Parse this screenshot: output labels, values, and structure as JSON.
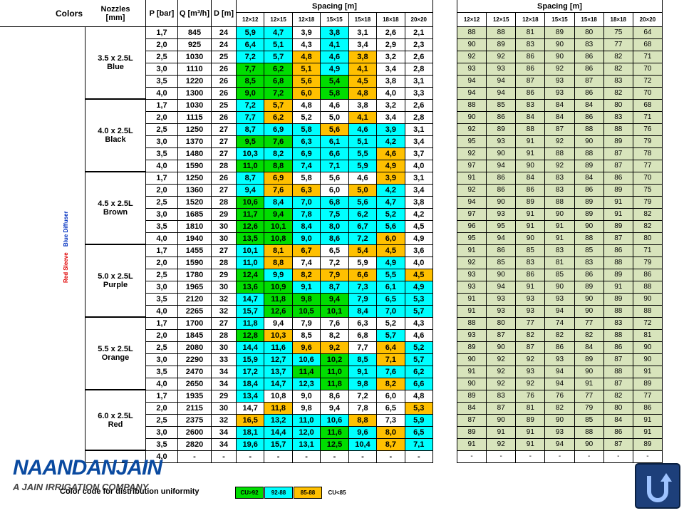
{
  "header": {
    "colors": "Colors",
    "nozzles": "Nozzles [mm]",
    "p": "P [bar]",
    "q": "Q [m³/h]",
    "d": "D [m]",
    "spacing_left": "Spacing [m]",
    "spacing_right": "Spacing [m]",
    "spacings": [
      "12×12",
      "12×15",
      "12×18",
      "15×15",
      "15×18",
      "18×18",
      "20×20"
    ]
  },
  "side_labels": {
    "sleeve": "Red Sleeve",
    "diffuser": "Blue Diffuser"
  },
  "groups": [
    {
      "nozzle": "3.5 x 2.5L",
      "color": "Blue",
      "rows": [
        {
          "p": "1,7",
          "q": "845",
          "d": "24",
          "spacing": [
            "5,9",
            "4,7",
            "3,9",
            "3,8",
            "3,1",
            "2,6",
            "2,1"
          ],
          "cu": [
            88,
            88,
            81,
            89,
            80,
            75,
            64
          ]
        },
        {
          "p": "2,0",
          "q": "925",
          "d": "24",
          "spacing": [
            "6,4",
            "5,1",
            "4,3",
            "4,1",
            "3,4",
            "2,9",
            "2,3"
          ],
          "cu": [
            90,
            89,
            83,
            90,
            83,
            77,
            68
          ]
        },
        {
          "p": "2,5",
          "q": "1030",
          "d": "25",
          "spacing": [
            "7,2",
            "5,7",
            "4,8",
            "4,6",
            "3,8",
            "3,2",
            "2,6"
          ],
          "cu": [
            92,
            92,
            86,
            90,
            86,
            82,
            71
          ]
        },
        {
          "p": "3,0",
          "q": "1110",
          "d": "26",
          "spacing": [
            "7,7",
            "6,2",
            "5,1",
            "4,9",
            "4,1",
            "3,4",
            "2,8"
          ],
          "cu": [
            93,
            93,
            86,
            92,
            86,
            82,
            70
          ]
        },
        {
          "p": "3,5",
          "q": "1220",
          "d": "26",
          "spacing": [
            "8,5",
            "6,8",
            "5,6",
            "5,4",
            "4,5",
            "3,8",
            "3,1"
          ],
          "cu": [
            94,
            94,
            87,
            93,
            87,
            83,
            72
          ]
        },
        {
          "p": "4,0",
          "q": "1300",
          "d": "26",
          "spacing": [
            "9,0",
            "7,2",
            "6,0",
            "5,8",
            "4,8",
            "4,0",
            "3,3"
          ],
          "cu": [
            94,
            94,
            86,
            93,
            86,
            82,
            70
          ]
        }
      ]
    },
    {
      "nozzle": "4.0 x 2.5L",
      "color": "Black",
      "rows": [
        {
          "p": "1,7",
          "q": "1030",
          "d": "25",
          "spacing": [
            "7,2",
            "5,7",
            "4,8",
            "4,6",
            "3,8",
            "3,2",
            "2,6"
          ],
          "cu": [
            88,
            85,
            83,
            84,
            84,
            80,
            68
          ]
        },
        {
          "p": "2,0",
          "q": "1115",
          "d": "26",
          "spacing": [
            "7,7",
            "6,2",
            "5,2",
            "5,0",
            "4,1",
            "3,4",
            "2,8"
          ],
          "cu": [
            90,
            86,
            84,
            84,
            86,
            83,
            71
          ]
        },
        {
          "p": "2,5",
          "q": "1250",
          "d": "27",
          "spacing": [
            "8,7",
            "6,9",
            "5,8",
            "5,6",
            "4,6",
            "3,9",
            "3,1"
          ],
          "cu": [
            92,
            89,
            88,
            87,
            88,
            88,
            76
          ]
        },
        {
          "p": "3,0",
          "q": "1370",
          "d": "27",
          "spacing": [
            "9,5",
            "7,6",
            "6,3",
            "6,1",
            "5,1",
            "4,2",
            "3,4"
          ],
          "cu": [
            95,
            93,
            91,
            92,
            90,
            89,
            79
          ]
        },
        {
          "p": "3,5",
          "q": "1480",
          "d": "27",
          "spacing": [
            "10,3",
            "8,2",
            "6,9",
            "6,6",
            "5,5",
            "4,6",
            "3,7"
          ],
          "cu": [
            92,
            90,
            91,
            88,
            88,
            87,
            78
          ]
        },
        {
          "p": "4,0",
          "q": "1590",
          "d": "28",
          "spacing": [
            "11,0",
            "8,8",
            "7,4",
            "7,1",
            "5,9",
            "4,9",
            "4,0"
          ],
          "cu": [
            97,
            94,
            90,
            92,
            89,
            87,
            77
          ]
        }
      ]
    },
    {
      "nozzle": "4.5 x 2.5L",
      "color": "Brown",
      "rows": [
        {
          "p": "1,7",
          "q": "1250",
          "d": "26",
          "spacing": [
            "8,7",
            "6,9",
            "5,8",
            "5,6",
            "4,6",
            "3,9",
            "3,1"
          ],
          "cu": [
            91,
            86,
            84,
            83,
            84,
            86,
            70
          ]
        },
        {
          "p": "2,0",
          "q": "1360",
          "d": "27",
          "spacing": [
            "9,4",
            "7,6",
            "6,3",
            "6,0",
            "5,0",
            "4,2",
            "3,4"
          ],
          "cu": [
            92,
            86,
            86,
            83,
            86,
            89,
            75
          ]
        },
        {
          "p": "2,5",
          "q": "1520",
          "d": "28",
          "spacing": [
            "10,6",
            "8,4",
            "7,0",
            "6,8",
            "5,6",
            "4,7",
            "3,8"
          ],
          "cu": [
            94,
            90,
            89,
            88,
            89,
            91,
            79
          ]
        },
        {
          "p": "3,0",
          "q": "1685",
          "d": "29",
          "spacing": [
            "11,7",
            "9,4",
            "7,8",
            "7,5",
            "6,2",
            "5,2",
            "4,2"
          ],
          "cu": [
            97,
            93,
            91,
            90,
            89,
            91,
            82
          ]
        },
        {
          "p": "3,5",
          "q": "1810",
          "d": "30",
          "spacing": [
            "12,6",
            "10,1",
            "8,4",
            "8,0",
            "6,7",
            "5,6",
            "4,5"
          ],
          "cu": [
            96,
            95,
            91,
            91,
            90,
            89,
            82
          ]
        },
        {
          "p": "4,0",
          "q": "1940",
          "d": "30",
          "spacing": [
            "13,5",
            "10,8",
            "9,0",
            "8,6",
            "7,2",
            "6,0",
            "4,9"
          ],
          "cu": [
            95,
            94,
            90,
            91,
            88,
            87,
            80
          ]
        }
      ]
    },
    {
      "nozzle": "5.0 x 2.5L",
      "color": "Purple",
      "rows": [
        {
          "p": "1,7",
          "q": "1455",
          "d": "27",
          "spacing": [
            "10,1",
            "8,1",
            "6,7",
            "6,5",
            "5,4",
            "4,5",
            "3,6"
          ],
          "cu": [
            91,
            86,
            85,
            83,
            85,
            86,
            71
          ]
        },
        {
          "p": "2,0",
          "q": "1590",
          "d": "28",
          "spacing": [
            "11,0",
            "8,8",
            "7,4",
            "7,2",
            "5,9",
            "4,9",
            "4,0"
          ],
          "cu": [
            92,
            85,
            83,
            81,
            83,
            88,
            79
          ]
        },
        {
          "p": "2,5",
          "q": "1780",
          "d": "29",
          "spacing": [
            "12,4",
            "9,9",
            "8,2",
            "7,9",
            "6,6",
            "5,5",
            "4,5"
          ],
          "cu": [
            93,
            90,
            86,
            85,
            86,
            89,
            86
          ]
        },
        {
          "p": "3,0",
          "q": "1965",
          "d": "30",
          "spacing": [
            "13,6",
            "10,9",
            "9,1",
            "8,7",
            "7,3",
            "6,1",
            "4,9"
          ],
          "cu": [
            93,
            94,
            91,
            90,
            89,
            91,
            88
          ]
        },
        {
          "p": "3,5",
          "q": "2120",
          "d": "32",
          "spacing": [
            "14,7",
            "11,8",
            "9,8",
            "9,4",
            "7,9",
            "6,5",
            "5,3"
          ],
          "cu": [
            91,
            93,
            93,
            93,
            90,
            89,
            90
          ]
        },
        {
          "p": "4,0",
          "q": "2265",
          "d": "32",
          "spacing": [
            "15,7",
            "12,6",
            "10,5",
            "10,1",
            "8,4",
            "7,0",
            "5,7"
          ],
          "cu": [
            91,
            93,
            93,
            94,
            90,
            88,
            88
          ]
        }
      ]
    },
    {
      "nozzle": "5.5 x 2.5L",
      "color": "Orange",
      "rows": [
        {
          "p": "1,7",
          "q": "1700",
          "d": "27",
          "spacing": [
            "11,8",
            "9,4",
            "7,9",
            "7,6",
            "6,3",
            "5,2",
            "4,3"
          ],
          "cu": [
            88,
            80,
            77,
            74,
            77,
            83,
            72
          ]
        },
        {
          "p": "2,0",
          "q": "1845",
          "d": "28",
          "spacing": [
            "12,8",
            "10,3",
            "8,5",
            "8,2",
            "6,8",
            "5,7",
            "4,6"
          ],
          "cu": [
            93,
            87,
            82,
            82,
            82,
            88,
            81
          ]
        },
        {
          "p": "2,5",
          "q": "2080",
          "d": "30",
          "spacing": [
            "14,4",
            "11,6",
            "9,6",
            "9,2",
            "7,7",
            "6,4",
            "5,2"
          ],
          "cu": [
            89,
            90,
            87,
            86,
            84,
            86,
            90
          ]
        },
        {
          "p": "3,0",
          "q": "2290",
          "d": "33",
          "spacing": [
            "15,9",
            "12,7",
            "10,6",
            "10,2",
            "8,5",
            "7,1",
            "5,7"
          ],
          "cu": [
            90,
            92,
            92,
            93,
            89,
            87,
            90
          ]
        },
        {
          "p": "3,5",
          "q": "2470",
          "d": "34",
          "spacing": [
            "17,2",
            "13,7",
            "11,4",
            "11,0",
            "9,1",
            "7,6",
            "6,2"
          ],
          "cu": [
            91,
            92,
            93,
            94,
            90,
            88,
            91
          ]
        },
        {
          "p": "4,0",
          "q": "2650",
          "d": "34",
          "spacing": [
            "18,4",
            "14,7",
            "12,3",
            "11,8",
            "9,8",
            "8,2",
            "6,6"
          ],
          "cu": [
            90,
            92,
            92,
            94,
            91,
            87,
            89
          ]
        }
      ]
    },
    {
      "nozzle": "6.0 x 2.5L",
      "color": "Red",
      "rows": [
        {
          "p": "1,7",
          "q": "1935",
          "d": "29",
          "spacing": [
            "13,4",
            "10,8",
            "9,0",
            "8,6",
            "7,2",
            "6,0",
            "4,8"
          ],
          "cu": [
            89,
            83,
            76,
            76,
            77,
            82,
            77
          ]
        },
        {
          "p": "2,0",
          "q": "2115",
          "d": "30",
          "spacing": [
            "14,7",
            "11,8",
            "9,8",
            "9,4",
            "7,8",
            "6,5",
            "5,3"
          ],
          "cu": [
            84,
            87,
            81,
            82,
            79,
            80,
            86
          ]
        },
        {
          "p": "2,5",
          "q": "2375",
          "d": "32",
          "spacing": [
            "16,5",
            "13,2",
            "11,0",
            "10,6",
            "8,8",
            "7,3",
            "5,9"
          ],
          "cu": [
            87,
            90,
            89,
            90,
            85,
            84,
            91
          ]
        },
        {
          "p": "3,0",
          "q": "2600",
          "d": "34",
          "spacing": [
            "18,1",
            "14,4",
            "12,0",
            "11,6",
            "9,6",
            "8,0",
            "6,5"
          ],
          "cu": [
            89,
            91,
            91,
            93,
            88,
            86,
            91
          ]
        },
        {
          "p": "3,5",
          "q": "2820",
          "d": "34",
          "spacing": [
            "19,6",
            "15,7",
            "13,1",
            "12,5",
            "10,4",
            "8,7",
            "7,1"
          ],
          "cu": [
            91,
            92,
            91,
            94,
            90,
            87,
            89
          ]
        }
      ]
    }
  ],
  "last_row": {
    "p": "4,0",
    "q": "-",
    "d": "-",
    "spacing": [
      "-",
      "-",
      "-",
      "-",
      "-",
      "-",
      "-"
    ],
    "cu": [
      "-",
      "-",
      "-",
      "-",
      "-",
      "-",
      "-"
    ]
  },
  "footer": {
    "caption": "Color code for distribution uniformity",
    "legend": [
      {
        "label": "CU>92",
        "color": "#00dd00"
      },
      {
        "label": "92-88",
        "color": "#00ffff"
      },
      {
        "label": "85-88",
        "color": "#ffc000"
      },
      {
        "label": "CU<85",
        "color": "#ffffff"
      }
    ]
  },
  "logo": {
    "name": "NAANDANJAIN",
    "tagline": "A JAIN IRRIGATION COMPANY"
  }
}
